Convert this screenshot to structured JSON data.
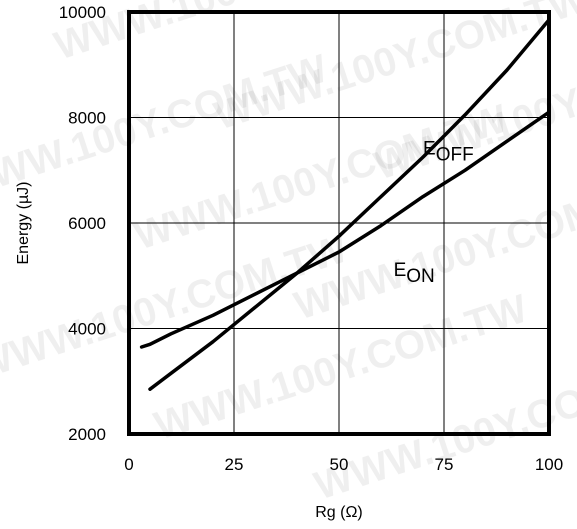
{
  "chart_data": {
    "type": "line",
    "title": "",
    "xlabel": "Rg (Ω)",
    "ylabel": "Energy (µJ)",
    "xlim": [
      0,
      100
    ],
    "ylim": [
      2000,
      10000
    ],
    "xticks": [
      0,
      25,
      50,
      75,
      100
    ],
    "yticks": [
      2000,
      4000,
      6000,
      8000,
      10000
    ],
    "grid": true,
    "series": [
      {
        "name": "E_OFF",
        "label_main": "E",
        "label_sub": "OFF",
        "x": [
          5,
          10,
          20,
          30,
          40,
          50,
          60,
          70,
          80,
          90,
          100
        ],
        "y": [
          2850,
          3150,
          3750,
          4400,
          5050,
          5750,
          6500,
          7250,
          8050,
          8900,
          9850
        ]
      },
      {
        "name": "E_ON",
        "label_main": "E",
        "label_sub": "ON",
        "x": [
          3,
          5,
          10,
          20,
          30,
          40,
          50,
          60,
          70,
          80,
          90,
          100
        ],
        "y": [
          3650,
          3700,
          3900,
          4250,
          4650,
          5050,
          5450,
          5950,
          6500,
          7000,
          7550,
          8100
        ]
      }
    ]
  },
  "watermark": "WWW.100Y.COM.TW"
}
